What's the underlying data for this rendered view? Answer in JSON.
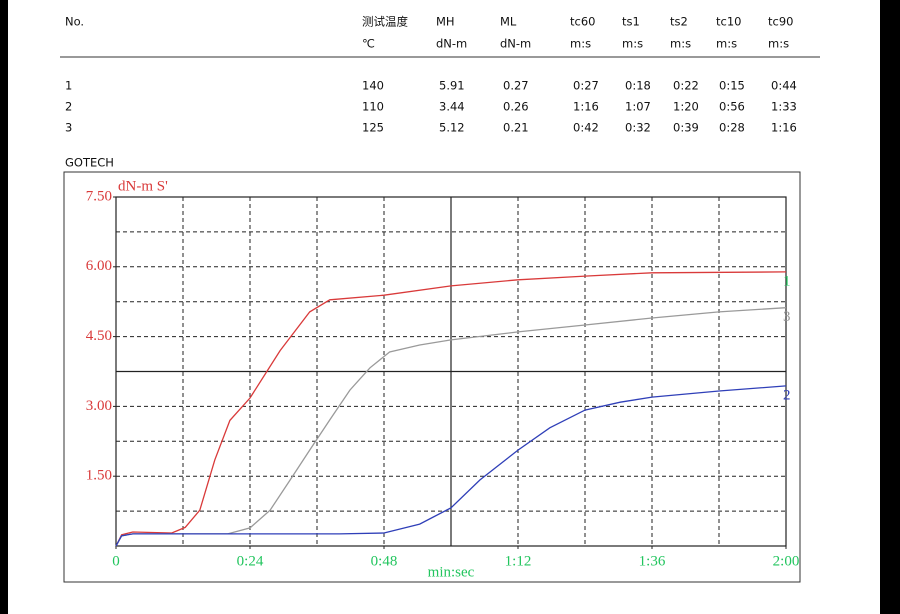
{
  "table": {
    "header": [
      "No.",
      "测试温度",
      "MH",
      "ML",
      "tc60",
      "ts1",
      "ts2",
      "tc10",
      "tc90"
    ],
    "units": [
      "℃",
      "dN-m",
      "dN-m",
      "m:s",
      "m:s",
      "m:s",
      "m:s",
      "m:s"
    ],
    "rows": [
      [
        "1",
        "140",
        "5.91",
        "0.27",
        "0:27",
        "0:18",
        "0:22",
        "0:15",
        "0:44"
      ],
      [
        "2",
        "110",
        "3.44",
        "0.26",
        "1:16",
        "1:07",
        "1:20",
        "0:56",
        "1:33"
      ],
      [
        "3",
        "125",
        "5.12",
        "0.21",
        "0:42",
        "0:32",
        "0:39",
        "0:28",
        "1:16"
      ]
    ]
  },
  "brand": "GOTECH",
  "chart_data": {
    "type": "line",
    "y_label": "dN-m  S'",
    "x_label": "min:sec",
    "xlim": [
      0,
      120
    ],
    "ylim": [
      0,
      7.5
    ],
    "xticks": [
      0,
      {
        "value": 24,
        "label": "0:24"
      },
      {
        "value": 48,
        "label": "0:48"
      },
      {
        "value": 72,
        "label": "1:12"
      },
      {
        "value": 96,
        "label": "1:36"
      },
      {
        "value": 120,
        "label": "2:00"
      }
    ],
    "yticks": [
      {
        "value": 1.5,
        "label": "1.50"
      },
      {
        "value": 3,
        "label": "3.00"
      },
      {
        "value": 4.5,
        "label": "4.50"
      },
      {
        "value": 6,
        "label": "6.00"
      },
      {
        "value": 7.5,
        "label": "7.50"
      }
    ],
    "xgrid": [
      12,
      24,
      36,
      48,
      72,
      84,
      96,
      108
    ],
    "ygrid": [
      0.75,
      1.5,
      2.25,
      3,
      4.5,
      5.25,
      6,
      6.75
    ],
    "cursor": {
      "x": 60,
      "y": 3.75
    },
    "grid": true,
    "series": [
      {
        "name": "1",
        "color": "#d93a3a",
        "label_color": "#22c55e",
        "x": [
          0,
          1,
          3,
          10,
          12.4,
          15,
          17.7,
          20.4,
          24,
          29.4,
          34.7,
          38.3,
          48,
          60,
          72,
          84,
          96,
          120
        ],
        "values": [
          0,
          0.24,
          0.3,
          0.28,
          0.4,
          0.77,
          1.85,
          2.7,
          3.18,
          4.2,
          5.03,
          5.29,
          5.39,
          5.59,
          5.72,
          5.8,
          5.87,
          5.89
        ]
      },
      {
        "name": "3",
        "color": "#9a9a9a",
        "label_color": "#9a9a9a",
        "x": [
          0,
          1,
          3,
          20,
          24,
          27.6,
          31.2,
          34.7,
          38.3,
          41.9,
          45.5,
          49,
          54.4,
          60,
          72,
          84,
          96,
          108,
          120
        ],
        "values": [
          0,
          0.22,
          0.26,
          0.26,
          0.39,
          0.77,
          1.42,
          2.06,
          2.71,
          3.35,
          3.83,
          4.17,
          4.32,
          4.43,
          4.6,
          4.75,
          4.9,
          5.03,
          5.12
        ]
      },
      {
        "name": "2",
        "color": "#2f3fb8",
        "label_color": "#2f3fb8",
        "x": [
          0,
          1,
          3,
          40,
          48,
          54.4,
          60,
          65.2,
          72,
          77.7,
          84,
          90.3,
          96,
          108,
          120
        ],
        "values": [
          0,
          0.22,
          0.26,
          0.26,
          0.28,
          0.47,
          0.82,
          1.42,
          2.06,
          2.54,
          2.92,
          3.09,
          3.2,
          3.33,
          3.44
        ]
      }
    ]
  }
}
